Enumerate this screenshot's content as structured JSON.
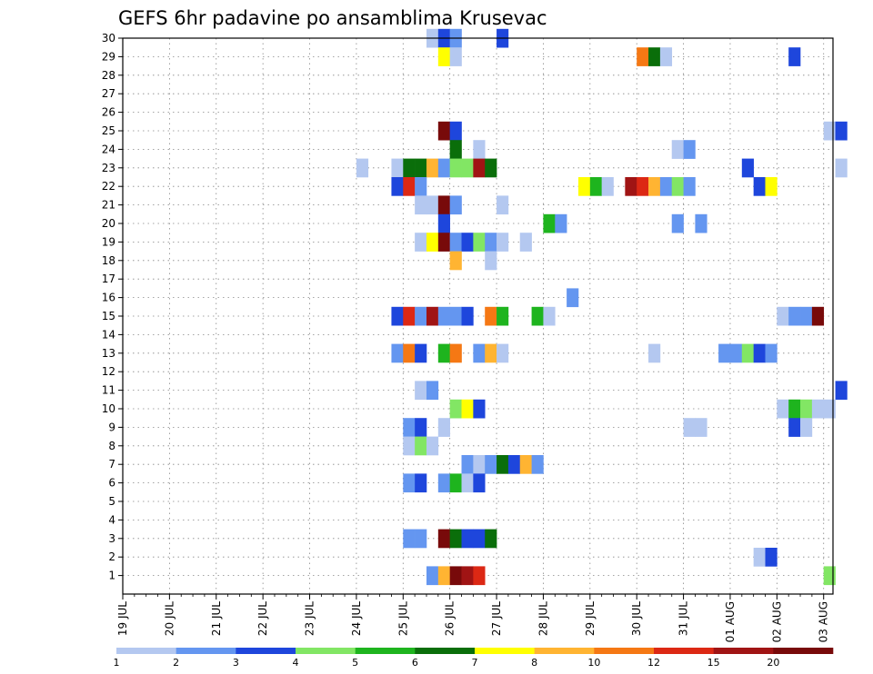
{
  "chart_data": {
    "type": "heatmap",
    "title": "GEFS 6hr padavine po ansamblima Krusevac",
    "xlabel": "",
    "ylabel": "",
    "x_ticks": [
      "19 JUL",
      "20 JUL",
      "21 JUL",
      "22 JUL",
      "23 JUL",
      "24 JUL",
      "25 JUL",
      "26 JUL",
      "27 JUL",
      "28 JUL",
      "29 JUL",
      "30 JUL",
      "31 JUL",
      "01 AUG",
      "02 AUG",
      "03 AUG"
    ],
    "x_range_days": [
      0,
      15.2
    ],
    "y_ticks": [
      1,
      2,
      3,
      4,
      5,
      6,
      7,
      8,
      9,
      10,
      11,
      12,
      13,
      14,
      15,
      16,
      17,
      18,
      19,
      20,
      21,
      22,
      23,
      24,
      25,
      26,
      27,
      28,
      29,
      30
    ],
    "y_range": [
      0,
      30
    ],
    "grid": true,
    "colorbar": {
      "labels": [
        "1",
        "2",
        "3",
        "4",
        "5",
        "6",
        "7",
        "8",
        "10",
        "12",
        "15",
        "20"
      ],
      "colors": [
        "#b4c8f0",
        "#6496f0",
        "#1e46dc",
        "#82e664",
        "#1eb41e",
        "#0a6e0a",
        "#ffff00",
        "#ffb432",
        "#f57814",
        "#dc2814",
        "#a01414",
        "#780a0a"
      ]
    },
    "values_legend": "Each cell: [member, time step index (6h, starting 19 JUL 00Z), colour class index into colorbar.colors]",
    "cells": [
      [
        30,
        26,
        0
      ],
      [
        30,
        27,
        2
      ],
      [
        30,
        28,
        1
      ],
      [
        30,
        32,
        2
      ],
      [
        29,
        27,
        6
      ],
      [
        29,
        28,
        0
      ],
      [
        29,
        44,
        8
      ],
      [
        29,
        45,
        5
      ],
      [
        29,
        46,
        0
      ],
      [
        29,
        57,
        2
      ],
      [
        25,
        27,
        11
      ],
      [
        25,
        28,
        2
      ],
      [
        25,
        60,
        0
      ],
      [
        25,
        61,
        2
      ],
      [
        24,
        28,
        5
      ],
      [
        24,
        30,
        0
      ],
      [
        24,
        47,
        0
      ],
      [
        24,
        48,
        1
      ],
      [
        23,
        20,
        0
      ],
      [
        23,
        23,
        0
      ],
      [
        23,
        24,
        5
      ],
      [
        23,
        25,
        5
      ],
      [
        23,
        26,
        7
      ],
      [
        23,
        27,
        1
      ],
      [
        23,
        28,
        3
      ],
      [
        23,
        29,
        3
      ],
      [
        23,
        30,
        10
      ],
      [
        23,
        31,
        5
      ],
      [
        23,
        53,
        2
      ],
      [
        23,
        61,
        0
      ],
      [
        22,
        23,
        2
      ],
      [
        22,
        24,
        9
      ],
      [
        22,
        25,
        1
      ],
      [
        22,
        39,
        6
      ],
      [
        22,
        40,
        4
      ],
      [
        22,
        41,
        0
      ],
      [
        22,
        43,
        10
      ],
      [
        22,
        44,
        9
      ],
      [
        22,
        45,
        7
      ],
      [
        22,
        46,
        1
      ],
      [
        22,
        47,
        3
      ],
      [
        22,
        48,
        1
      ],
      [
        22,
        54,
        2
      ],
      [
        22,
        55,
        6
      ],
      [
        21,
        25,
        0
      ],
      [
        21,
        26,
        0
      ],
      [
        21,
        27,
        11
      ],
      [
        21,
        28,
        1
      ],
      [
        21,
        32,
        0
      ],
      [
        20,
        27,
        2
      ],
      [
        20,
        36,
        4
      ],
      [
        20,
        37,
        1
      ],
      [
        20,
        47,
        1
      ],
      [
        20,
        49,
        1
      ],
      [
        19,
        25,
        0
      ],
      [
        19,
        26,
        6
      ],
      [
        19,
        27,
        11
      ],
      [
        19,
        28,
        1
      ],
      [
        19,
        29,
        2
      ],
      [
        19,
        30,
        3
      ],
      [
        19,
        31,
        1
      ],
      [
        19,
        32,
        0
      ],
      [
        19,
        34,
        0
      ],
      [
        18,
        31,
        0
      ],
      [
        18,
        28,
        7
      ],
      [
        16,
        38,
        1
      ],
      [
        15,
        23,
        2
      ],
      [
        15,
        24,
        9
      ],
      [
        15,
        25,
        1
      ],
      [
        15,
        26,
        10
      ],
      [
        15,
        27,
        1
      ],
      [
        15,
        28,
        1
      ],
      [
        15,
        29,
        2
      ],
      [
        15,
        31,
        8
      ],
      [
        15,
        32,
        4
      ],
      [
        15,
        35,
        4
      ],
      [
        15,
        36,
        0
      ],
      [
        15,
        56,
        0
      ],
      [
        15,
        57,
        1
      ],
      [
        15,
        58,
        1
      ],
      [
        15,
        59,
        11
      ],
      [
        13,
        23,
        1
      ],
      [
        13,
        24,
        8
      ],
      [
        13,
        25,
        2
      ],
      [
        13,
        27,
        4
      ],
      [
        13,
        28,
        8
      ],
      [
        13,
        30,
        1
      ],
      [
        13,
        31,
        7
      ],
      [
        13,
        32,
        0
      ],
      [
        13,
        45,
        0
      ],
      [
        13,
        51,
        1
      ],
      [
        13,
        52,
        1
      ],
      [
        13,
        53,
        3
      ],
      [
        13,
        54,
        2
      ],
      [
        13,
        55,
        1
      ],
      [
        11,
        25,
        0
      ],
      [
        11,
        26,
        1
      ],
      [
        11,
        61,
        2
      ],
      [
        10,
        28,
        3
      ],
      [
        10,
        29,
        6
      ],
      [
        10,
        30,
        2
      ],
      [
        10,
        56,
        0
      ],
      [
        10,
        57,
        4
      ],
      [
        10,
        58,
        3
      ],
      [
        10,
        59,
        0
      ],
      [
        10,
        60,
        0
      ],
      [
        9,
        24,
        1
      ],
      [
        9,
        25,
        2
      ],
      [
        9,
        27,
        0
      ],
      [
        9,
        48,
        0
      ],
      [
        9,
        49,
        0
      ],
      [
        9,
        57,
        2
      ],
      [
        9,
        58,
        0
      ],
      [
        8,
        24,
        0
      ],
      [
        8,
        25,
        3
      ],
      [
        8,
        26,
        0
      ],
      [
        7,
        29,
        1
      ],
      [
        7,
        30,
        0
      ],
      [
        7,
        31,
        1
      ],
      [
        7,
        32,
        5
      ],
      [
        7,
        33,
        2
      ],
      [
        7,
        34,
        7
      ],
      [
        7,
        35,
        1
      ],
      [
        6,
        24,
        1
      ],
      [
        6,
        25,
        2
      ],
      [
        6,
        27,
        1
      ],
      [
        6,
        28,
        4
      ],
      [
        6,
        29,
        0
      ],
      [
        6,
        30,
        2
      ],
      [
        3,
        24,
        1
      ],
      [
        3,
        25,
        1
      ],
      [
        3,
        27,
        11
      ],
      [
        3,
        28,
        5
      ],
      [
        3,
        29,
        2
      ],
      [
        3,
        30,
        2
      ],
      [
        3,
        31,
        5
      ],
      [
        2,
        54,
        0
      ],
      [
        2,
        55,
        2
      ],
      [
        1,
        26,
        1
      ],
      [
        1,
        27,
        7
      ],
      [
        1,
        28,
        11
      ],
      [
        1,
        29,
        10
      ],
      [
        1,
        30,
        9
      ],
      [
        1,
        60,
        3
      ]
    ]
  }
}
